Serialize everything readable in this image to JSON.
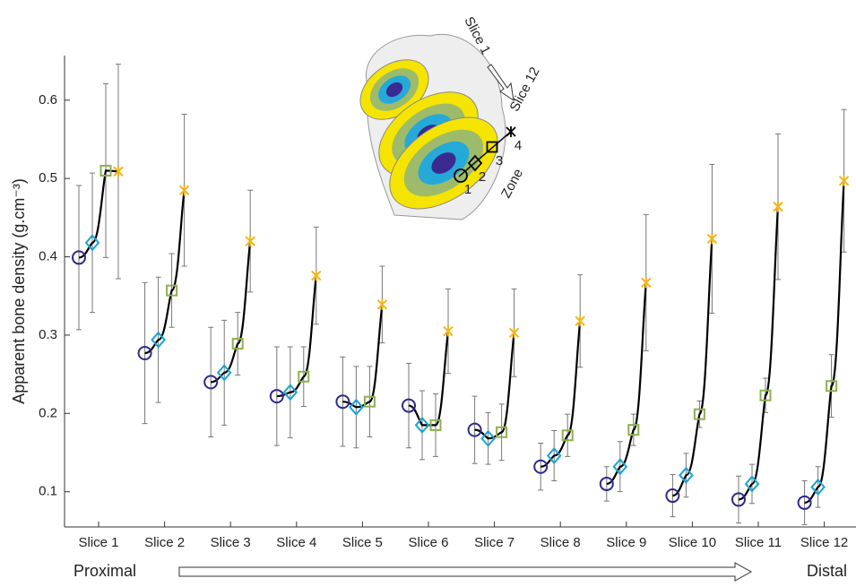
{
  "chart_data": {
    "type": "line-errorbar",
    "ylabel": "Apparent bone density (g.cm⁻³)",
    "categories": [
      "Slice 1",
      "Slice 2",
      "Slice 3",
      "Slice 4",
      "Slice 5",
      "Slice 6",
      "Slice 7",
      "Slice 8",
      "Slice 9",
      "Slice 10",
      "Slice 11",
      "Slice 12"
    ],
    "ylim": [
      0.055,
      0.657
    ],
    "yticks": [
      0.1,
      0.2,
      0.3,
      0.4,
      0.5,
      0.6
    ],
    "legend_title": "Zone",
    "annotations": [
      "Slice 1",
      "Slice 12",
      "Proximal",
      "Distal"
    ],
    "series": [
      {
        "name": "1",
        "marker": "circle",
        "color": "#2e2a8c",
        "values": [
          0.399,
          0.277,
          0.24,
          0.222,
          0.215,
          0.21,
          0.179,
          0.132,
          0.11,
          0.095,
          0.09,
          0.086
        ],
        "errors": [
          0.092,
          0.09,
          0.07,
          0.063,
          0.057,
          0.054,
          0.043,
          0.03,
          0.022,
          0.027,
          0.03,
          0.028
        ]
      },
      {
        "name": "2",
        "marker": "diamond",
        "color": "#1aa3d4",
        "values": [
          0.418,
          0.294,
          0.252,
          0.227,
          0.208,
          0.185,
          0.168,
          0.146,
          0.132,
          0.121,
          0.11,
          0.106
        ],
        "errors": [
          0.089,
          0.08,
          0.067,
          0.058,
          0.052,
          0.044,
          0.033,
          0.032,
          0.032,
          0.028,
          0.025,
          0.026
        ]
      },
      {
        "name": "3",
        "marker": "square",
        "color": "#8db04f",
        "values": [
          0.51,
          0.357,
          0.289,
          0.247,
          0.215,
          0.185,
          0.176,
          0.172,
          0.179,
          0.199,
          0.223,
          0.235
        ],
        "errors": [
          0.111,
          0.047,
          0.04,
          0.038,
          0.045,
          0.04,
          0.036,
          0.027,
          0.02,
          0.017,
          0.022,
          0.04
        ]
      },
      {
        "name": "4",
        "marker": "star",
        "color": "#f2b51b",
        "values": [
          0.509,
          0.485,
          0.42,
          0.376,
          0.339,
          0.305,
          0.303,
          0.318,
          0.367,
          0.423,
          0.464,
          0.497
        ],
        "errors": [
          0.137,
          0.097,
          0.065,
          0.062,
          0.049,
          0.054,
          0.056,
          0.059,
          0.087,
          0.095,
          0.093,
          0.091
        ]
      }
    ]
  }
}
